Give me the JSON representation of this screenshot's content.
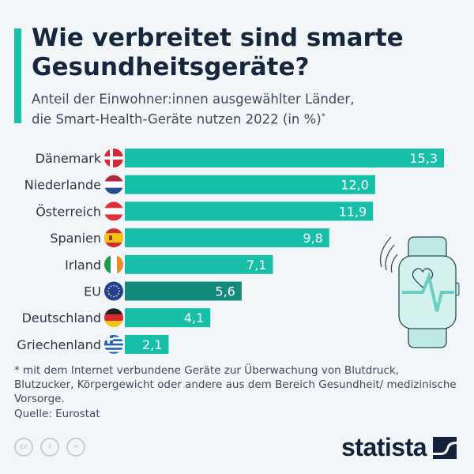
{
  "header": {
    "title": "Wie verbreitet sind smarte Gesundheitsgeräte?",
    "subtitle_line1": "Anteil der Einwohner:innen ausgewählter Länder,",
    "subtitle_line2": "die Smart-Health-Geräte nutzen 2022 (in %)",
    "subtitle_mark": "*"
  },
  "chart_data": {
    "type": "bar",
    "orientation": "horizontal",
    "categories": [
      "Dänemark",
      "Niederlande",
      "Österreich",
      "Spanien",
      "Irland",
      "EU",
      "Deutschland",
      "Griechenland"
    ],
    "values": [
      15.3,
      12.0,
      11.9,
      9.8,
      7.1,
      5.6,
      4.1,
      2.1
    ],
    "value_labels": [
      "15,3",
      "12,0",
      "11,9",
      "9,8",
      "7,1",
      "5,6",
      "4,1",
      "2,1"
    ],
    "flags": [
      "denmark-flag",
      "netherlands-flag",
      "austria-flag",
      "spain-flag",
      "ireland-flag",
      "eu-flag",
      "germany-flag",
      "greece-flag"
    ],
    "xlim": [
      0,
      15.3
    ],
    "grid": false,
    "colors": {
      "bar": "#17bfa8",
      "highlight": "#138a7a"
    },
    "highlight_category": "EU"
  },
  "footer": {
    "footnote": "* mit dem Internet verbundene Geräte zur Überwachung von Blutdruck, Blutzucker, Körpergewicht oder andere aus dem Bereich Gesundheit/ medizinische Vorsorge.",
    "source": "Quelle: Eurostat",
    "logo": "statista"
  }
}
